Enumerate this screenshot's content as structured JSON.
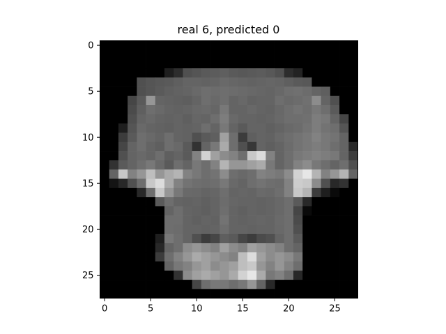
{
  "chart_data": {
    "type": "heatmap",
    "title": "real 6, predicted 0",
    "colormap": "gray",
    "xlabel": "",
    "ylabel": "",
    "x_ticks": [
      0,
      5,
      10,
      15,
      20,
      25
    ],
    "y_ticks": [
      0,
      5,
      10,
      15,
      20,
      25
    ],
    "xlim": [
      -0.5,
      27.5
    ],
    "ylim": [
      27.5,
      -0.5
    ],
    "value_range": [
      0,
      255
    ],
    "grid": false,
    "rows": 28,
    "cols": 28,
    "values": [
      [
        0,
        0,
        0,
        0,
        0,
        0,
        0,
        0,
        0,
        0,
        0,
        0,
        0,
        0,
        0,
        0,
        0,
        0,
        0,
        0,
        0,
        0,
        0,
        0,
        0,
        0,
        0,
        0
      ],
      [
        0,
        0,
        0,
        0,
        0,
        0,
        0,
        0,
        0,
        0,
        0,
        0,
        0,
        0,
        0,
        0,
        0,
        0,
        0,
        0,
        0,
        0,
        0,
        0,
        0,
        0,
        0,
        0
      ],
      [
        0,
        0,
        0,
        0,
        0,
        0,
        0,
        0,
        0,
        0,
        0,
        0,
        0,
        0,
        0,
        0,
        0,
        0,
        0,
        0,
        0,
        0,
        0,
        0,
        0,
        0,
        0,
        0
      ],
      [
        0,
        0,
        0,
        0,
        0,
        0,
        0,
        30,
        45,
        80,
        85,
        90,
        92,
        95,
        90,
        88,
        90,
        92,
        88,
        80,
        45,
        35,
        0,
        0,
        0,
        0,
        0,
        0
      ],
      [
        0,
        0,
        0,
        0,
        80,
        85,
        88,
        90,
        95,
        100,
        100,
        98,
        100,
        105,
        102,
        100,
        98,
        100,
        102,
        100,
        95,
        90,
        88,
        0,
        0,
        0,
        0,
        0
      ],
      [
        0,
        0,
        0,
        0,
        80,
        85,
        90,
        95,
        98,
        100,
        105,
        110,
        108,
        110,
        108,
        106,
        104,
        102,
        100,
        104,
        110,
        112,
        108,
        100,
        95,
        0,
        0,
        0
      ],
      [
        0,
        0,
        0,
        70,
        90,
        150,
        100,
        98,
        96,
        94,
        100,
        110,
        105,
        110,
        100,
        104,
        98,
        100,
        100,
        110,
        105,
        108,
        112,
        140,
        100,
        80,
        0,
        0
      ],
      [
        0,
        0,
        0,
        75,
        95,
        110,
        105,
        100,
        98,
        100,
        104,
        106,
        102,
        120,
        100,
        100,
        104,
        100,
        98,
        104,
        110,
        115,
        110,
        120,
        110,
        90,
        0,
        0
      ],
      [
        0,
        0,
        0,
        80,
        100,
        105,
        100,
        98,
        100,
        95,
        102,
        100,
        110,
        125,
        105,
        100,
        100,
        98,
        100,
        105,
        110,
        110,
        112,
        125,
        120,
        100,
        70,
        0
      ],
      [
        0,
        0,
        30,
        85,
        105,
        100,
        98,
        96,
        100,
        98,
        100,
        110,
        100,
        120,
        100,
        90,
        100,
        100,
        96,
        100,
        105,
        108,
        115,
        125,
        115,
        110,
        85,
        0
      ],
      [
        0,
        0,
        60,
        90,
        110,
        105,
        100,
        110,
        100,
        98,
        80,
        90,
        95,
        160,
        110,
        60,
        95,
        100,
        98,
        105,
        110,
        115,
        120,
        130,
        120,
        115,
        100,
        0
      ],
      [
        0,
        0,
        70,
        100,
        110,
        100,
        95,
        110,
        105,
        90,
        50,
        100,
        120,
        170,
        110,
        80,
        55,
        100,
        95,
        100,
        108,
        115,
        120,
        125,
        120,
        110,
        100,
        40
      ],
      [
        0,
        0,
        80,
        100,
        105,
        100,
        110,
        95,
        100,
        90,
        130,
        210,
        160,
        140,
        130,
        110,
        200,
        220,
        130,
        100,
        110,
        120,
        125,
        130,
        125,
        120,
        100,
        60
      ],
      [
        0,
        50,
        90,
        100,
        110,
        120,
        105,
        90,
        110,
        100,
        120,
        110,
        130,
        180,
        150,
        150,
        160,
        170,
        120,
        100,
        110,
        130,
        140,
        120,
        110,
        100,
        110,
        80
      ],
      [
        0,
        100,
        200,
        130,
        150,
        190,
        150,
        170,
        180,
        130,
        120,
        110,
        115,
        140,
        110,
        105,
        110,
        130,
        125,
        120,
        140,
        210,
        230,
        180,
        130,
        150,
        180,
        100
      ],
      [
        0,
        20,
        40,
        80,
        110,
        200,
        220,
        170,
        130,
        115,
        110,
        108,
        110,
        120,
        105,
        100,
        110,
        115,
        110,
        108,
        130,
        205,
        200,
        140,
        80,
        40,
        50,
        0
      ],
      [
        0,
        0,
        0,
        0,
        40,
        110,
        200,
        150,
        120,
        105,
        104,
        100,
        102,
        110,
        100,
        102,
        100,
        106,
        104,
        110,
        130,
        200,
        180,
        60,
        30,
        10,
        0,
        0
      ],
      [
        0,
        0,
        0,
        0,
        0,
        0,
        90,
        110,
        100,
        98,
        100,
        96,
        100,
        108,
        102,
        100,
        100,
        98,
        100,
        104,
        110,
        90,
        40,
        0,
        0,
        0,
        0,
        0
      ],
      [
        0,
        0,
        0,
        0,
        0,
        0,
        0,
        100,
        110,
        100,
        98,
        95,
        100,
        110,
        100,
        96,
        100,
        98,
        100,
        104,
        110,
        70,
        10,
        0,
        0,
        0,
        0,
        0
      ],
      [
        0,
        0,
        0,
        0,
        0,
        0,
        0,
        110,
        110,
        100,
        96,
        100,
        98,
        115,
        100,
        98,
        100,
        102,
        100,
        106,
        110,
        75,
        0,
        0,
        0,
        0,
        0,
        0
      ],
      [
        0,
        0,
        0,
        0,
        0,
        0,
        0,
        110,
        108,
        100,
        100,
        98,
        100,
        110,
        100,
        100,
        98,
        100,
        100,
        105,
        110,
        80,
        0,
        0,
        0,
        0,
        0,
        0
      ],
      [
        0,
        0,
        0,
        0,
        0,
        0,
        30,
        120,
        110,
        100,
        80,
        60,
        70,
        95,
        90,
        70,
        60,
        75,
        80,
        100,
        110,
        90,
        0,
        0,
        0,
        0,
        0,
        0
      ],
      [
        0,
        0,
        0,
        0,
        0,
        0,
        40,
        100,
        110,
        140,
        150,
        140,
        130,
        160,
        140,
        130,
        160,
        150,
        140,
        130,
        110,
        100,
        0,
        0,
        0,
        0,
        0,
        0
      ],
      [
        0,
        0,
        0,
        0,
        0,
        0,
        60,
        110,
        130,
        150,
        170,
        160,
        150,
        140,
        130,
        190,
        220,
        160,
        140,
        150,
        140,
        120,
        0,
        0,
        0,
        0,
        0,
        0
      ],
      [
        0,
        0,
        0,
        0,
        0,
        0,
        0,
        100,
        120,
        130,
        150,
        160,
        140,
        150,
        160,
        190,
        200,
        150,
        130,
        150,
        130,
        110,
        0,
        0,
        0,
        0,
        0,
        0
      ],
      [
        0,
        0,
        0,
        0,
        0,
        0,
        0,
        0,
        50,
        140,
        160,
        170,
        160,
        150,
        170,
        210,
        230,
        170,
        120,
        130,
        110,
        40,
        0,
        0,
        0,
        0,
        0,
        0
      ],
      [
        0,
        0,
        0,
        0,
        0,
        0,
        0,
        0,
        0,
        0,
        70,
        110,
        120,
        120,
        110,
        120,
        150,
        100,
        40,
        0,
        0,
        0,
        0,
        0,
        0,
        0,
        0,
        0
      ],
      [
        0,
        0,
        0,
        0,
        0,
        0,
        0,
        0,
        0,
        0,
        0,
        0,
        0,
        0,
        0,
        0,
        0,
        0,
        0,
        0,
        0,
        0,
        0,
        0,
        0,
        0,
        0,
        0
      ]
    ]
  }
}
